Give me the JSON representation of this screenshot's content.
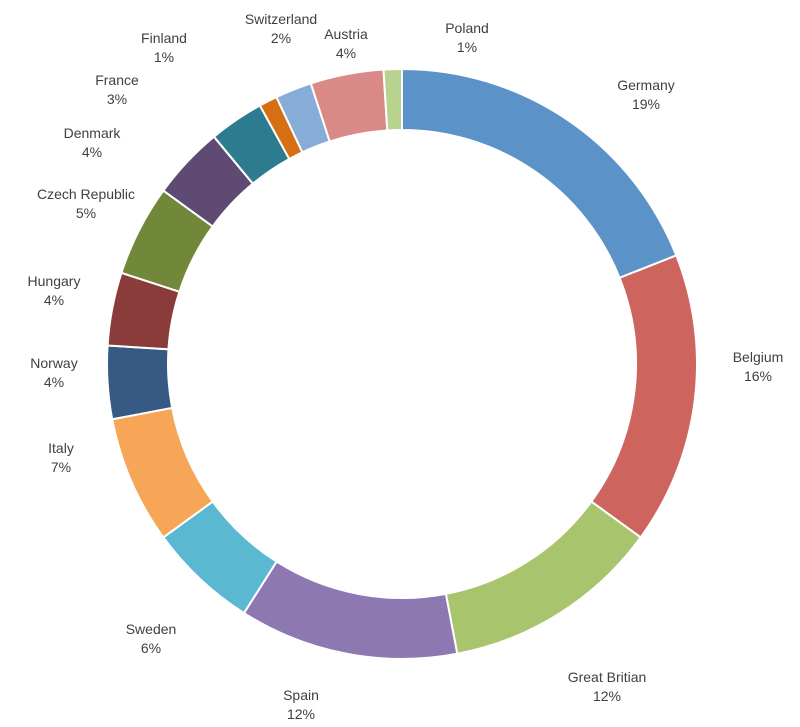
{
  "chart_data": {
    "type": "pie",
    "subtype": "donut",
    "title": "",
    "legend": "none",
    "slices": [
      {
        "label": "Germany",
        "value": 19,
        "display": "19%",
        "color": "#5b93c8"
      },
      {
        "label": "Belgium",
        "value": 16,
        "display": "16%",
        "color": "#cd655e"
      },
      {
        "label": "Great Britian",
        "value": 12,
        "display": "12%",
        "color": "#a8c56e"
      },
      {
        "label": "Spain",
        "value": 12,
        "display": "12%",
        "color": "#8e78b1"
      },
      {
        "label": "Sweden",
        "value": 6,
        "display": "6%",
        "color": "#5ab8d1"
      },
      {
        "label": "Italy",
        "value": 7,
        "display": "7%",
        "color": "#f7a556"
      },
      {
        "label": "Norway",
        "value": 4,
        "display": "4%",
        "color": "#365a84"
      },
      {
        "label": "Hungary",
        "value": 4,
        "display": "4%",
        "color": "#8a3c3a"
      },
      {
        "label": "Czech Republic",
        "value": 5,
        "display": "5%",
        "color": "#71883a"
      },
      {
        "label": "Denmark",
        "value": 4,
        "display": "4%",
        "color": "#5e4a72"
      },
      {
        "label": "France",
        "value": 3,
        "display": "3%",
        "color": "#2c7b8e"
      },
      {
        "label": "Finland",
        "value": 1,
        "display": "1%",
        "color": "#d66f12"
      },
      {
        "label": "Switzerland",
        "value": 2,
        "display": "2%",
        "color": "#88acd8"
      },
      {
        "label": "Austria",
        "value": 4,
        "display": "4%",
        "color": "#d98986"
      },
      {
        "label": "Poland",
        "value": 1,
        "display": "1%",
        "color": "#b8d38e"
      }
    ]
  }
}
